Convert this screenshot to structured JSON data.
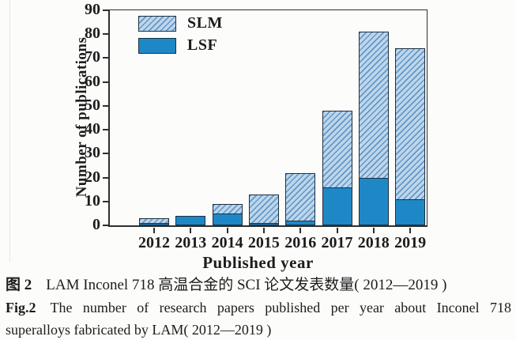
{
  "colors": {
    "axis": "#2f2f2f",
    "text": "#1c1c1c",
    "lsf_solid": "#1e88c7",
    "slm_hatch_bg": "#bdd6ea",
    "slm_hatch_line": "#6496c8",
    "bar_border": "#1c3040",
    "page_bg": "#fcfcfb"
  },
  "chart_data": {
    "type": "bar",
    "stacked": true,
    "title": "",
    "xlabel": "Published year",
    "ylabel": "Number of publications",
    "categories": [
      "2012",
      "2013",
      "2014",
      "2015",
      "2016",
      "2017",
      "2018",
      "2019"
    ],
    "series": [
      {
        "name": "LSF",
        "style": "solid",
        "values": [
          1,
          4,
          5,
          1,
          2,
          16,
          20,
          11
        ]
      },
      {
        "name": "SLM",
        "style": "hatch",
        "values": [
          2,
          0,
          4,
          12,
          20,
          32,
          61,
          63
        ]
      }
    ],
    "totals": [
      3,
      4,
      9,
      13,
      22,
      48,
      81,
      74
    ],
    "ylim": [
      0,
      90
    ],
    "yticks": [
      0,
      10,
      20,
      30,
      40,
      50,
      60,
      70,
      80,
      90
    ],
    "ytick_step": 10,
    "grid": false,
    "legend_position": "top-left",
    "legend_items": [
      {
        "label": "SLM",
        "swatch": "hatch"
      },
      {
        "label": "LSF",
        "swatch": "solid"
      }
    ]
  },
  "caption": {
    "zh_label": "图 2",
    "zh_text": "LAM Inconel 718 高温合金的 SCI 论文发表数量( 2012—2019 )",
    "en_label": "Fig.2",
    "en_line1": "The number of research papers published per year about Inconel 718",
    "en_line2": "superalloys fabricated by LAM( 2012—2019 )"
  }
}
